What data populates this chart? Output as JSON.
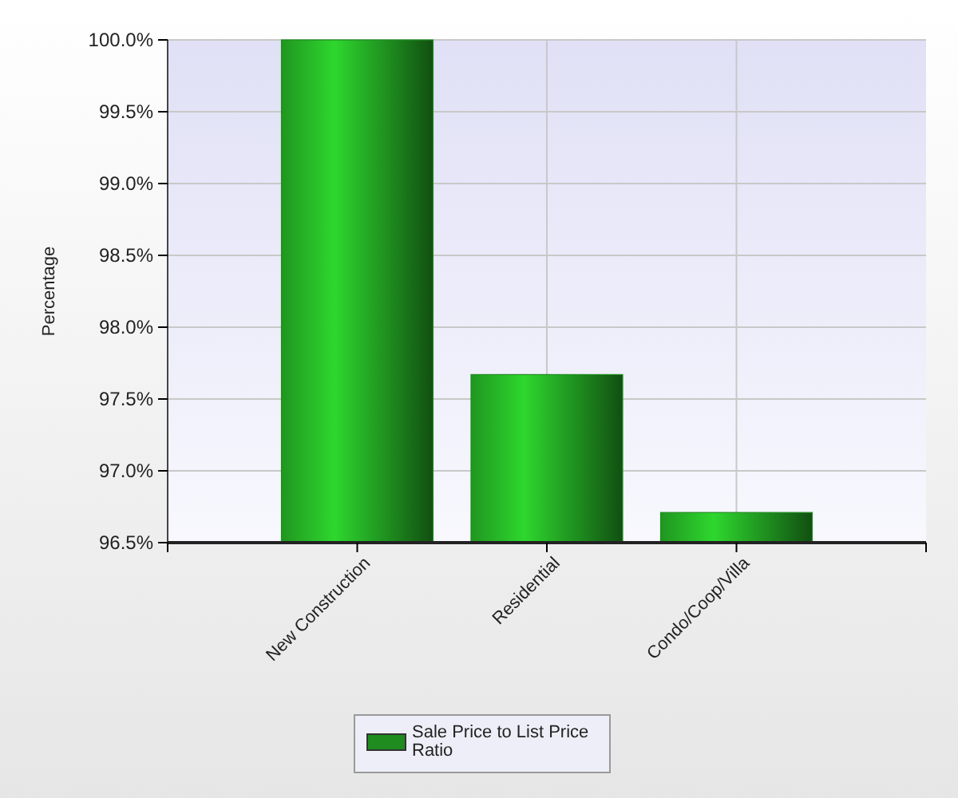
{
  "chart_data": {
    "type": "bar",
    "ylabel": "Percentage",
    "categories": [
      "New Construction",
      "Residential",
      "Condo/Coop/Villa"
    ],
    "series": [
      {
        "name": "Sale Price to List Price Ratio",
        "color": "#1e8c1e",
        "values": [
          100.0,
          97.67,
          96.71
        ]
      }
    ],
    "ylim": [
      96.5,
      100.0
    ],
    "yticks": [
      {
        "value": 96.5,
        "label": "96.5%"
      },
      {
        "value": 97.0,
        "label": "97.0%"
      },
      {
        "value": 97.5,
        "label": "97.5%"
      },
      {
        "value": 98.0,
        "label": "98.0%"
      },
      {
        "value": 98.5,
        "label": "98.5%"
      },
      {
        "value": 99.0,
        "label": "99.0%"
      },
      {
        "value": 99.5,
        "label": "99.5%"
      },
      {
        "value": 100.0,
        "label": "100.0%"
      }
    ],
    "grid": true,
    "legend": "bottom"
  }
}
